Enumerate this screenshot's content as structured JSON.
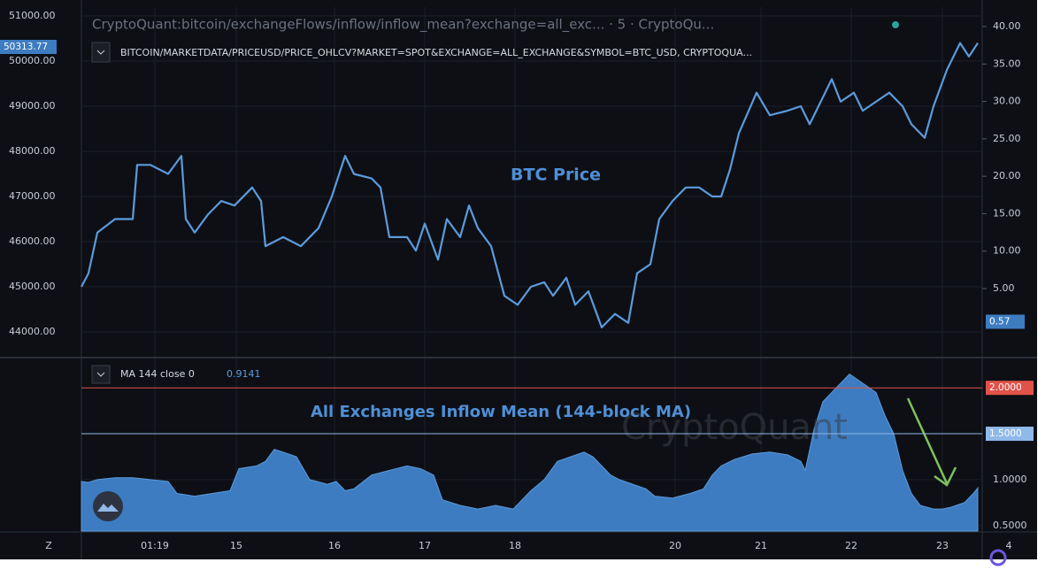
{
  "header": {
    "title": "CryptoQuant:bitcoin/exchangeFlows/inflow/inflow_mean?exchange=all_exc... · 5 · CryptoQu..."
  },
  "ui": {
    "corner_left": "Z",
    "corner_right": "4",
    "watermark": "CryptoQuant"
  },
  "chart_data": [
    {
      "type": "line",
      "title": "BTC Price",
      "x": [
        0,
        8,
        18,
        38,
        58,
        63,
        78,
        98,
        113,
        118,
        128,
        143,
        158,
        173,
        193,
        203,
        208,
        228,
        248,
        268,
        283,
        298,
        308,
        328,
        338,
        348,
        368,
        378,
        388,
        403,
        413,
        428,
        438,
        448,
        463,
        478,
        493,
        508,
        523,
        533,
        548,
        558,
        573,
        588,
        603,
        618,
        628,
        643,
        653,
        668,
        683,
        698,
        713,
        723,
        733,
        743,
        763,
        778,
        798,
        813,
        823,
        838,
        848,
        858,
        873,
        883,
        898,
        913,
        928,
        938,
        953,
        963,
        978,
        993,
        1003,
        1013
      ],
      "series": [
        {
          "name": "BITCOIN/MARKETDATA/PRICEUSD/PRICE_OHLCV?MARKET=SPOT&EXCHANGE=ALL_EXCHANGE&SYMBOL=BTC_USD, CRYPTOQUA...",
          "color": "#5b9bdc",
          "values": [
            45000,
            45300,
            46200,
            46500,
            46500,
            47700,
            47700,
            47500,
            47900,
            46500,
            46200,
            46600,
            46900,
            46800,
            47200,
            46900,
            45900,
            46100,
            45900,
            46300,
            47000,
            47900,
            47500,
            47400,
            47200,
            46100,
            46100,
            45800,
            46400,
            45600,
            46500,
            46100,
            46800,
            46300,
            45900,
            44800,
            44600,
            45000,
            45100,
            44800,
            45200,
            44600,
            44900,
            44100,
            44400,
            44200,
            45300,
            45500,
            46500,
            46900,
            47200,
            47200,
            47000,
            47000,
            47600,
            48400,
            49300,
            48800,
            48900,
            49000,
            48600,
            49200,
            49600,
            49100,
            49300,
            48900,
            49100,
            49300,
            49000,
            48600,
            48300,
            49000,
            49800,
            50400,
            50100,
            50400
          ]
        }
      ],
      "last_value": 50313.77,
      "xlim": [
        0,
        1018
      ],
      "ylim": [
        43451,
        51196
      ],
      "yticks": [
        {
          "value": 44000,
          "label": "44000.00"
        },
        {
          "value": 45000,
          "label": "45000.00"
        },
        {
          "value": 46000,
          "label": "46000.00"
        },
        {
          "value": 47000,
          "label": "47000.00"
        },
        {
          "value": 48000,
          "label": "48000.00"
        },
        {
          "value": 49000,
          "label": "49000.00"
        },
        {
          "value": 50000,
          "label": "50000.00"
        },
        {
          "value": 51000,
          "label": "51000.00"
        }
      ],
      "y2lim": [
        -4.1,
        42.6
      ],
      "y2ticks": [
        {
          "value": 5,
          "label": "5.00"
        },
        {
          "value": 10,
          "label": "10.00"
        },
        {
          "value": 15,
          "label": "15.00"
        },
        {
          "value": 20,
          "label": "20.00"
        },
        {
          "value": 25,
          "label": "25.00"
        },
        {
          "value": 30,
          "label": "30.00"
        },
        {
          "value": 35,
          "label": "35.00"
        },
        {
          "value": 40,
          "label": "40.00"
        }
      ],
      "y2_marker": 0.57
    },
    {
      "type": "area",
      "title": "All Exchanges Inflow Mean (144-block MA)",
      "x": [
        0,
        8,
        18,
        38,
        58,
        78,
        98,
        108,
        128,
        148,
        168,
        178,
        198,
        208,
        218,
        228,
        243,
        258,
        278,
        288,
        298,
        308,
        328,
        348,
        368,
        383,
        398,
        408,
        428,
        448,
        468,
        488,
        498,
        508,
        523,
        538,
        553,
        568,
        578,
        588,
        598,
        608,
        623,
        638,
        648,
        668,
        688,
        703,
        713,
        723,
        738,
        758,
        778,
        798,
        813,
        818,
        828,
        838,
        853,
        868,
        883,
        898,
        908,
        918,
        928,
        938,
        948,
        963,
        973,
        983,
        998,
        1008,
        1013
      ],
      "series": [
        {
          "name": "MA 144 close 0",
          "color": "#3d7cc0",
          "values": [
            0.98,
            0.97,
            1.0,
            1.02,
            1.02,
            1.0,
            0.98,
            0.85,
            0.82,
            0.85,
            0.88,
            1.12,
            1.15,
            1.2,
            1.33,
            1.3,
            1.25,
            1.0,
            0.95,
            0.98,
            0.88,
            0.9,
            1.05,
            1.1,
            1.15,
            1.12,
            1.05,
            0.78,
            0.72,
            0.68,
            0.72,
            0.68,
            0.78,
            0.88,
            1.0,
            1.2,
            1.25,
            1.3,
            1.25,
            1.15,
            1.05,
            1.0,
            0.95,
            0.9,
            0.82,
            0.8,
            0.85,
            0.9,
            1.05,
            1.15,
            1.22,
            1.28,
            1.3,
            1.27,
            1.2,
            1.1,
            1.55,
            1.85,
            2.0,
            2.15,
            2.05,
            1.95,
            1.7,
            1.5,
            1.1,
            0.85,
            0.72,
            0.68,
            0.68,
            0.7,
            0.75,
            0.85,
            0.91
          ]
        }
      ],
      "last_value": 0.9141,
      "xlim": [
        0,
        1018
      ],
      "ylim": [
        0.44,
        2.32
      ],
      "yticks": [
        {
          "value": 0.5,
          "label": "0.5000"
        },
        {
          "value": 1.0,
          "label": "1.0000"
        }
      ],
      "reference_lines": [
        {
          "value": 2.0,
          "label": "2.0000",
          "color": "#e0524a"
        },
        {
          "value": 1.5,
          "label": "1.5000",
          "color": "#8fb9e8"
        }
      ],
      "xticks": [
        {
          "value": 83,
          "label": "01:19"
        },
        {
          "value": 175,
          "label": "15"
        },
        {
          "value": 286,
          "label": "16"
        },
        {
          "value": 388,
          "label": "17"
        },
        {
          "value": 490,
          "label": "18"
        },
        {
          "value": 671,
          "label": "20"
        },
        {
          "value": 768,
          "label": "21"
        },
        {
          "value": 870,
          "label": "22"
        },
        {
          "value": 973,
          "label": "23"
        }
      ]
    }
  ]
}
